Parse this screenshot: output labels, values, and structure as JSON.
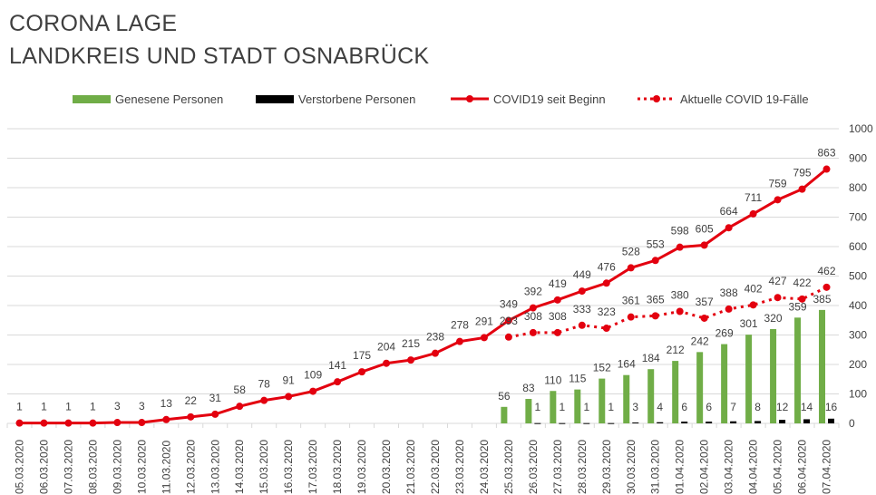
{
  "header": {
    "title_line1": "CORONA LAGE",
    "title_line2": "LANDKREIS UND STADT OSNABRÜCK"
  },
  "legend": {
    "recovered": "Genesene Personen",
    "deceased": "Verstorbene Personen",
    "total": "COVID19 seit Beginn",
    "active": "Aktuelle COVID 19-Fälle"
  },
  "colors": {
    "recovered": "#70ad47",
    "deceased": "#000000",
    "total": "#e3000f",
    "active": "#e3000f",
    "grid": "#d9d9d9",
    "text": "#404040"
  },
  "chart_data": {
    "type": "bar+line",
    "title": "CORONA LAGE LANDKREIS UND STADT OSNABRÜCK",
    "categories": [
      "05.03.2020",
      "06.03.2020",
      "07.03.2020",
      "08.03.2020",
      "09.03.2020",
      "10.03.2020",
      "11.03.2020",
      "12.03.2020",
      "13.03.2020",
      "14.03.2020",
      "15.03.2020",
      "16.03.2020",
      "17.03.2020",
      "18.03.2020",
      "19.03.2020",
      "20.03.2020",
      "21.03.2020",
      "22.03.2020",
      "23.03.2020",
      "24.03.2020",
      "25.03.2020",
      "26.03.2020",
      "27.03.2020",
      "28.03.2020",
      "29.03.2020",
      "30.03.2020",
      "31.03.2020",
      "01.04.2020",
      "02.04.2020",
      "03.04.2020",
      "04.04.2020",
      "05.04.2020",
      "06.04.2020",
      "07.04.2020"
    ],
    "ylim": [
      0,
      1000
    ],
    "yticks": [
      0,
      100,
      200,
      300,
      400,
      500,
      600,
      700,
      800,
      900,
      1000
    ],
    "grid": true,
    "legend_position": "top",
    "series": [
      {
        "name": "Genesene Personen",
        "kind": "bar",
        "values": [
          null,
          null,
          null,
          null,
          null,
          null,
          null,
          null,
          null,
          null,
          null,
          null,
          null,
          null,
          null,
          null,
          null,
          null,
          null,
          null,
          56,
          83,
          110,
          115,
          152,
          164,
          184,
          212,
          242,
          269,
          301,
          320,
          359,
          385
        ]
      },
      {
        "name": "Verstorbene Personen",
        "kind": "bar",
        "values": [
          null,
          null,
          null,
          null,
          null,
          null,
          null,
          null,
          null,
          null,
          null,
          null,
          null,
          null,
          null,
          null,
          null,
          null,
          null,
          null,
          null,
          1,
          1,
          1,
          1,
          3,
          4,
          6,
          6,
          7,
          8,
          12,
          14,
          16
        ]
      },
      {
        "name": "COVID19 seit Beginn",
        "kind": "line",
        "values": [
          1,
          1,
          1,
          1,
          3,
          3,
          13,
          22,
          31,
          58,
          78,
          91,
          109,
          141,
          175,
          204,
          215,
          238,
          278,
          291,
          349,
          392,
          419,
          449,
          476,
          528,
          553,
          598,
          605,
          664,
          711,
          759,
          795,
          863
        ]
      },
      {
        "name": "Aktuelle COVID 19-Fälle",
        "kind": "dotted-line",
        "values": [
          null,
          null,
          null,
          null,
          null,
          null,
          null,
          null,
          null,
          null,
          null,
          null,
          null,
          null,
          null,
          null,
          null,
          null,
          null,
          null,
          293,
          308,
          308,
          333,
          323,
          361,
          365,
          380,
          357,
          388,
          402,
          427,
          422,
          462
        ]
      }
    ]
  }
}
